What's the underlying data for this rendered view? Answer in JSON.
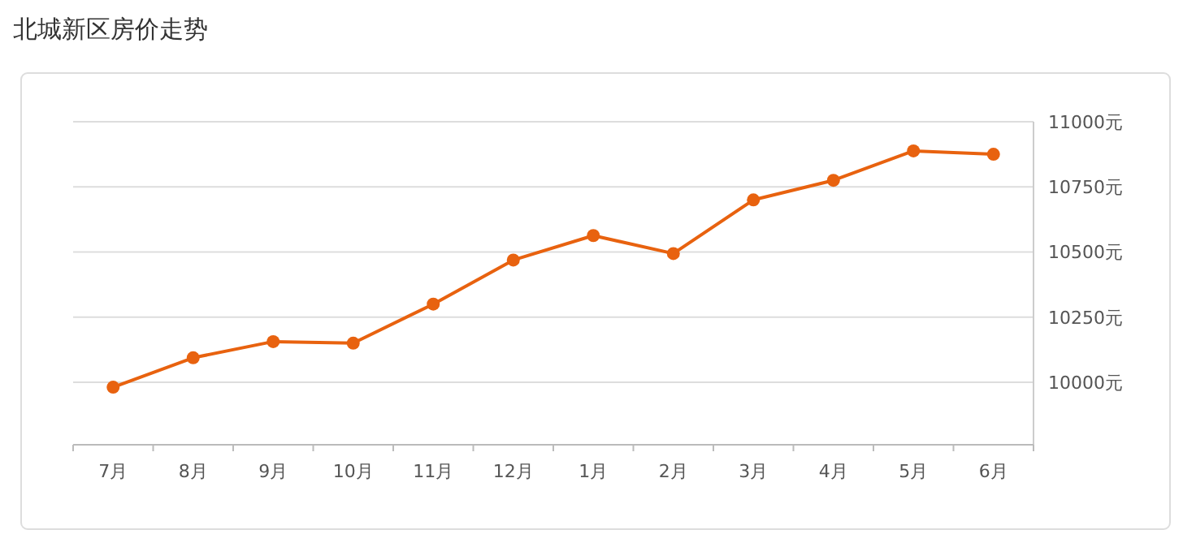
{
  "chart_data": {
    "type": "line",
    "title": "北城新区房价走势",
    "categories": [
      "7月",
      "8月",
      "9月",
      "10月",
      "11月",
      "12月",
      "1月",
      "2月",
      "3月",
      "4月",
      "5月",
      "6月"
    ],
    "series": [
      {
        "color": "#e8620f",
        "values": [
          9981,
          10094,
          10156,
          10150,
          10300,
          10469,
          10563,
          10494,
          10700,
          10775,
          10888,
          10875
        ]
      }
    ],
    "ylim": [
      9760,
      11000
    ],
    "yticks": [
      {
        "value": 10000,
        "label": "10000元"
      },
      {
        "value": 10250,
        "label": "10250元"
      },
      {
        "value": 10500,
        "label": "10500元"
      },
      {
        "value": 10750,
        "label": "10750元"
      },
      {
        "value": 11000,
        "label": "11000元"
      }
    ],
    "grid": "y",
    "marker": "circle"
  }
}
